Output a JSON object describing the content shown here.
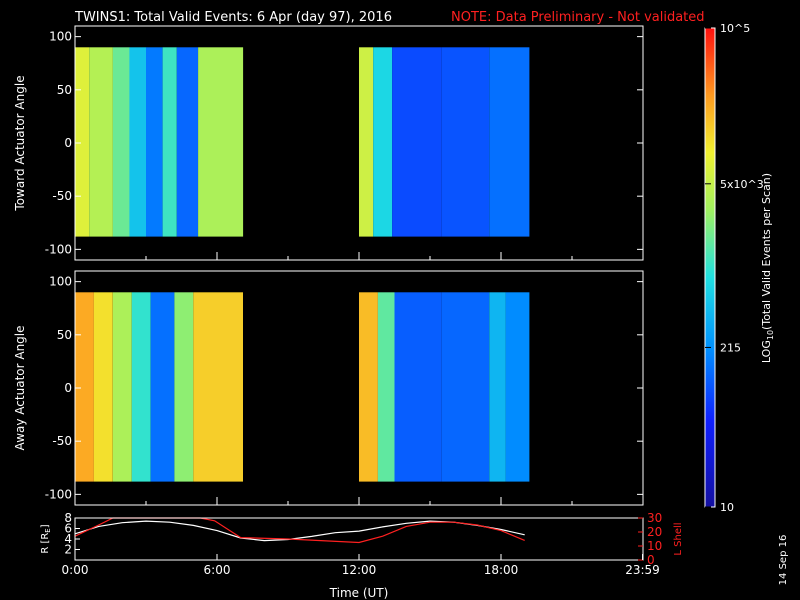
{
  "header": {
    "title": "TWINS1: Total Valid Events:  6 Apr (day  97), 2016",
    "note": "NOTE: Data Preliminary - Not validated"
  },
  "stamp": "14 Sep 16",
  "colors": {
    "background": "#000000",
    "axis": "#ffffff",
    "note": "#ff2020",
    "r_line": "#ffffff",
    "lshell_line": "#ff2020"
  },
  "chart_data": [
    {
      "type": "heatmap",
      "panel": "toward",
      "ylabel": "Toward Actuator Angle",
      "xlim": [
        0,
        24
      ],
      "ylim": [
        -110,
        110
      ],
      "y_ticks": [
        100,
        50,
        0,
        -50,
        -100
      ],
      "data_y_range": [
        -88,
        90
      ],
      "scale": "log10",
      "cbar_ticks": [
        {
          "value": 100000,
          "label": "10^5"
        },
        {
          "value": 5000,
          "label": "5x10^3"
        },
        {
          "value": 215,
          "label": "215"
        },
        {
          "value": 10,
          "label": "10"
        }
      ],
      "cbar_label": "LOG10(Total Valid Events per Scan)",
      "time_columns_hours": [
        {
          "start": 0.0,
          "end": 0.6,
          "log_value": 3.85
        },
        {
          "start": 0.6,
          "end": 1.6,
          "log_value": 3.6
        },
        {
          "start": 1.6,
          "end": 2.3,
          "log_value": 3.25
        },
        {
          "start": 2.3,
          "end": 3.0,
          "log_value": 2.7
        },
        {
          "start": 3.0,
          "end": 3.7,
          "log_value": 2.2
        },
        {
          "start": 3.7,
          "end": 4.3,
          "log_value": 3.05
        },
        {
          "start": 4.3,
          "end": 5.2,
          "log_value": 2.1
        },
        {
          "start": 5.2,
          "end": 7.1,
          "log_value": 3.55
        },
        {
          "start": 12.0,
          "end": 12.6,
          "log_value": 3.75
        },
        {
          "start": 12.6,
          "end": 13.4,
          "log_value": 2.85
        },
        {
          "start": 13.4,
          "end": 15.5,
          "log_value": 1.95
        },
        {
          "start": 15.5,
          "end": 17.5,
          "log_value": 2.0
        },
        {
          "start": 17.5,
          "end": 19.2,
          "log_value": 2.15
        }
      ]
    },
    {
      "type": "heatmap",
      "panel": "away",
      "ylabel": "Away Actuator Angle",
      "xlim": [
        0,
        24
      ],
      "ylim": [
        -110,
        110
      ],
      "y_ticks": [
        100,
        50,
        0,
        -50,
        -100
      ],
      "data_y_range": [
        -88,
        90
      ],
      "scale": "log10",
      "time_columns_hours": [
        {
          "start": 0.0,
          "end": 0.8,
          "log_value": 4.35
        },
        {
          "start": 0.8,
          "end": 1.6,
          "log_value": 4.05
        },
        {
          "start": 1.6,
          "end": 2.4,
          "log_value": 3.55
        },
        {
          "start": 2.4,
          "end": 3.2,
          "log_value": 3.0
        },
        {
          "start": 3.2,
          "end": 4.2,
          "log_value": 2.15
        },
        {
          "start": 4.2,
          "end": 5.0,
          "log_value": 3.4
        },
        {
          "start": 5.0,
          "end": 7.1,
          "log_value": 4.15
        },
        {
          "start": 12.0,
          "end": 12.8,
          "log_value": 4.25
        },
        {
          "start": 12.8,
          "end": 13.5,
          "log_value": 3.2
        },
        {
          "start": 13.5,
          "end": 15.5,
          "log_value": 2.05
        },
        {
          "start": 15.5,
          "end": 17.5,
          "log_value": 2.1
        },
        {
          "start": 17.5,
          "end": 18.2,
          "log_value": 2.6
        },
        {
          "start": 18.2,
          "end": 19.2,
          "log_value": 2.3
        }
      ]
    },
    {
      "type": "line",
      "panel": "ephemeris",
      "xlabel": "Time (UT)",
      "ylabel": "R [RE]",
      "ylabel_right": "L Shell",
      "x_tick_labels": [
        "0:00",
        "6:00",
        "12:00",
        "18:00",
        "23:59"
      ],
      "x_ticks_hours": [
        0,
        6,
        12,
        18,
        23.98
      ],
      "ylim_left": [
        0,
        8
      ],
      "y_ticks_left": [
        2,
        4,
        6,
        8
      ],
      "ylim_right": [
        0,
        30
      ],
      "y_ticks_right": [
        0,
        10,
        20,
        30
      ],
      "series": [
        {
          "name": "R",
          "axis": "left",
          "color": "#ffffff",
          "x": [
            0,
            1,
            2,
            3,
            4,
            5,
            6,
            7,
            8,
            9,
            10,
            11,
            12,
            13,
            14,
            15,
            16,
            17,
            18,
            19
          ],
          "y": [
            5.0,
            6.4,
            7.1,
            7.4,
            7.2,
            6.6,
            5.6,
            4.2,
            3.7,
            3.9,
            4.5,
            5.2,
            5.5,
            6.3,
            7.0,
            7.4,
            7.2,
            6.6,
            5.8,
            4.8
          ]
        },
        {
          "name": "L Shell",
          "axis": "right",
          "color": "#ff2020",
          "x": [
            0,
            1.0,
            1.6,
            5.3,
            5.9,
            7.0,
            9.0,
            12.0,
            13.0,
            14.0,
            15.0,
            16.0,
            17.0,
            18.0,
            19.0
          ],
          "y": [
            17,
            25,
            31,
            31,
            28,
            16,
            15,
            12.5,
            17,
            24,
            27,
            27,
            25,
            21,
            14
          ]
        }
      ]
    }
  ]
}
